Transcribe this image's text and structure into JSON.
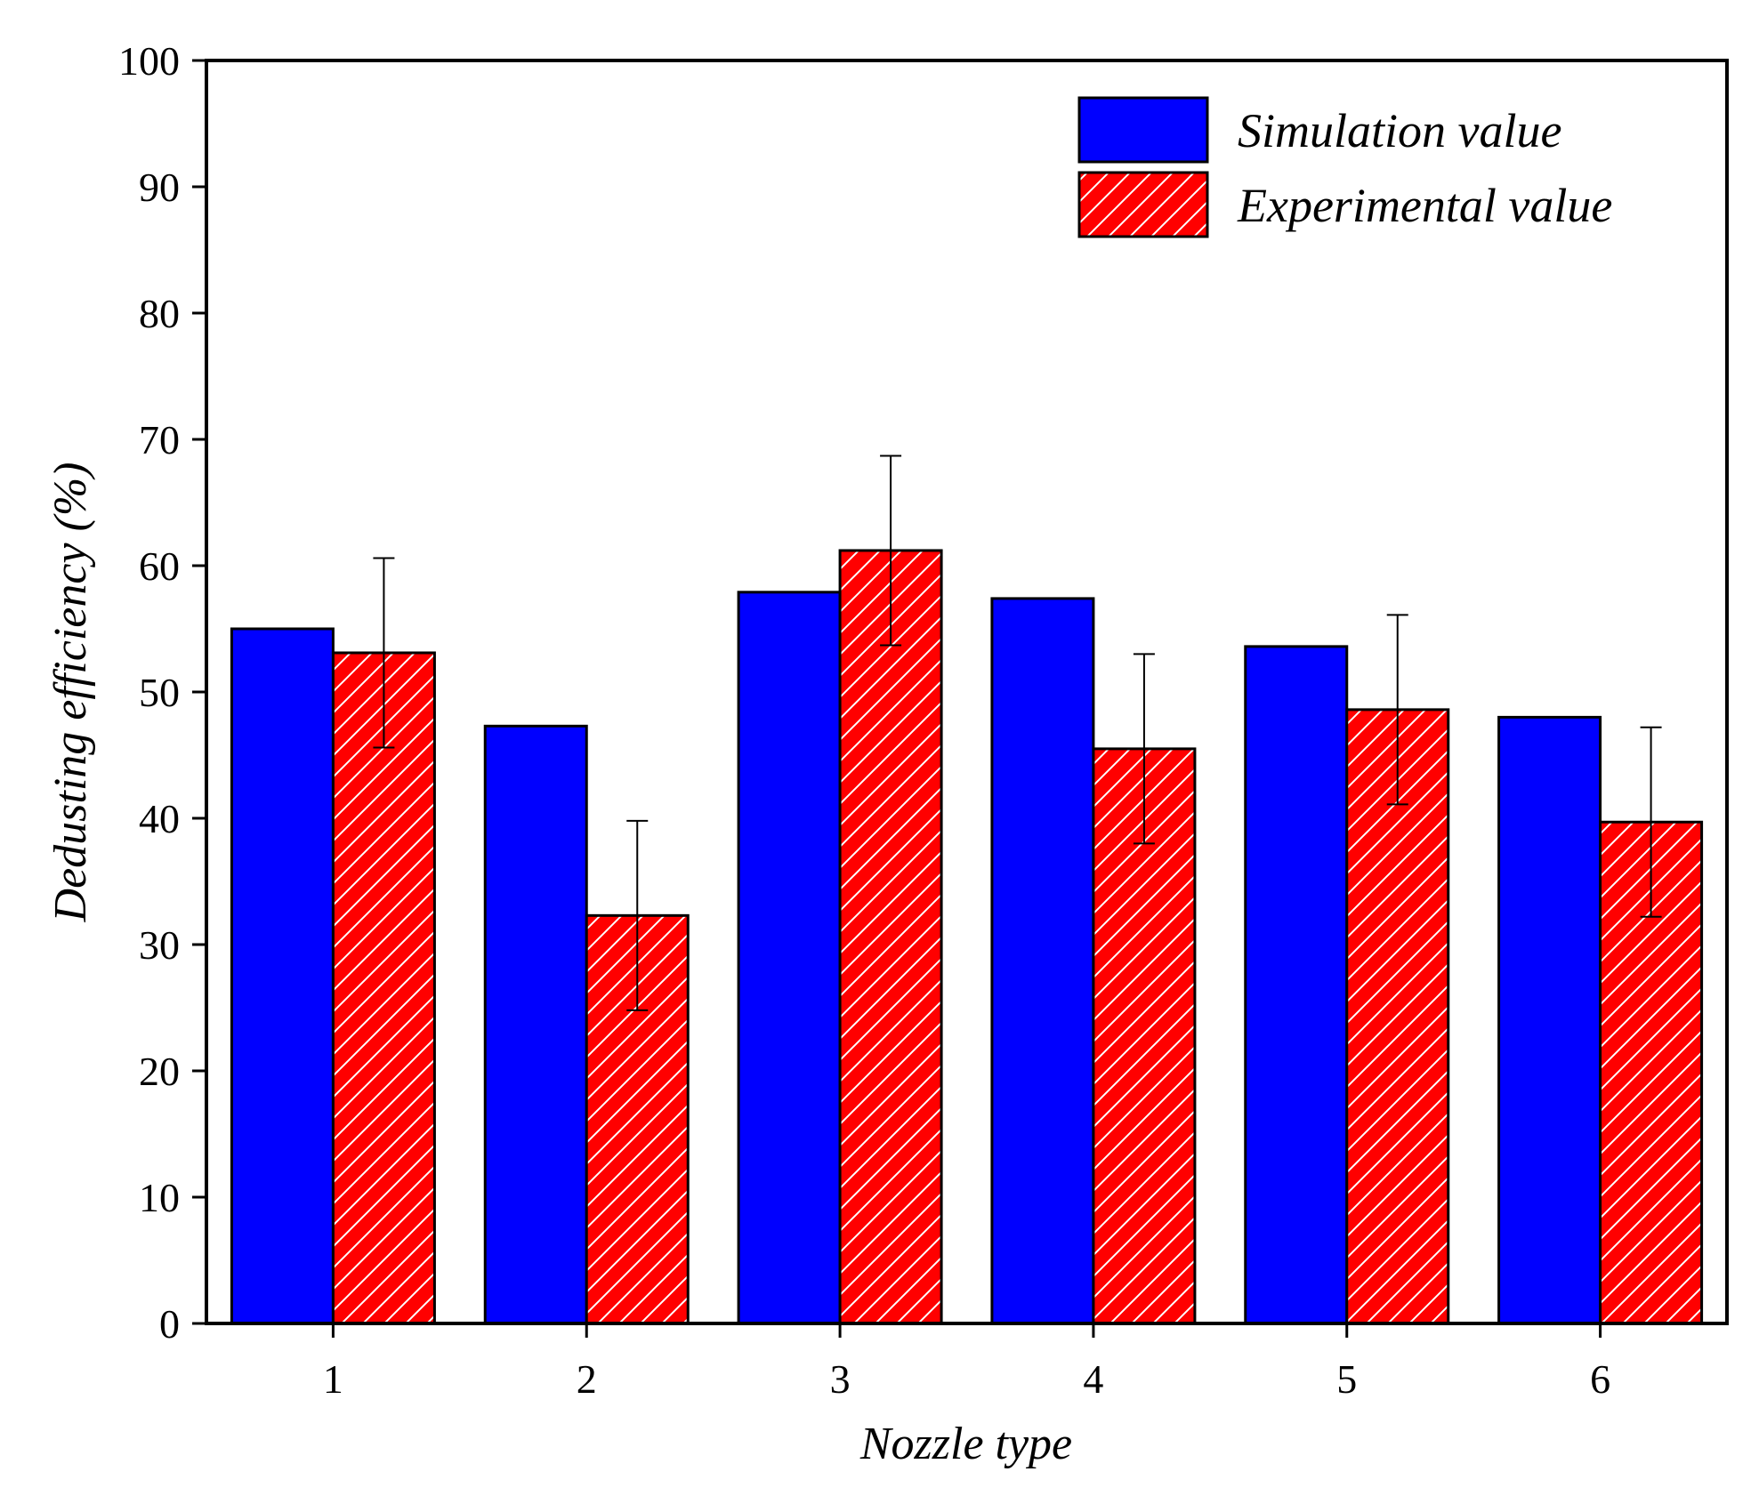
{
  "chart_data": {
    "type": "bar",
    "title": "",
    "xlabel": "Nozzle type",
    "ylabel": "Dedusting efficiency (%)",
    "categories": [
      "1",
      "2",
      "3",
      "4",
      "5",
      "6"
    ],
    "ylim": [
      0,
      100
    ],
    "yticks": [
      0,
      10,
      20,
      30,
      40,
      50,
      60,
      70,
      80,
      90,
      100
    ],
    "grid": false,
    "legend_position": "top-right",
    "series": [
      {
        "name": "Simulation value",
        "color": "#0000ff",
        "fill": "solid",
        "values": [
          55.0,
          47.3,
          57.9,
          57.4,
          53.6,
          48.0
        ]
      },
      {
        "name": "Experimental value",
        "color": "#ff0000",
        "fill": "diagonal-hatch",
        "values": [
          53.1,
          32.3,
          61.2,
          45.5,
          48.6,
          39.7
        ],
        "error_bars": [
          7.5,
          7.5,
          7.5,
          7.5,
          7.5,
          7.5
        ]
      }
    ]
  }
}
